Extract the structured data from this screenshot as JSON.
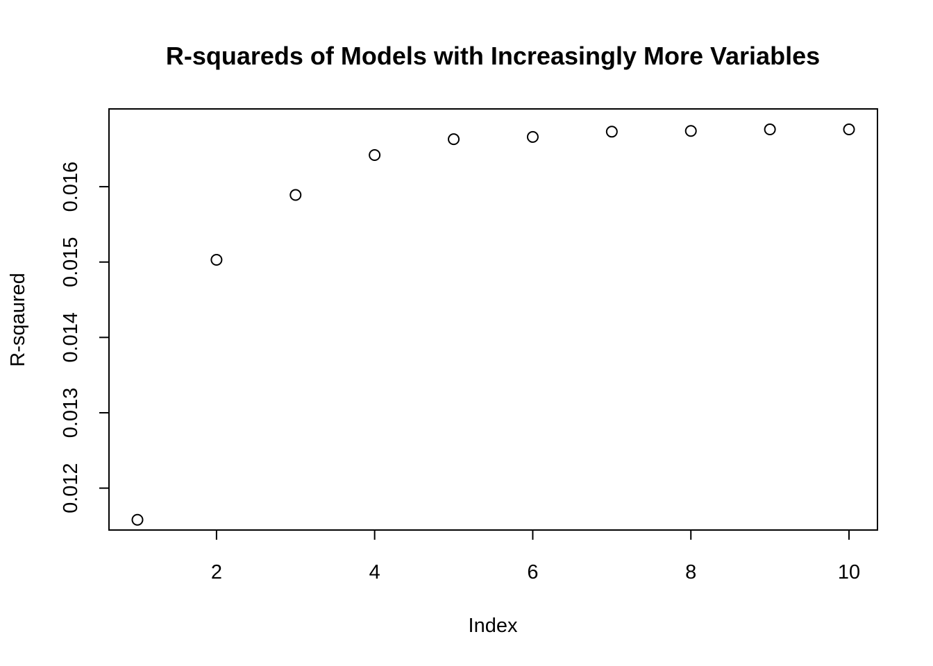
{
  "chart_data": {
    "type": "scatter",
    "title": "R-squareds of Models with Increasingly More Variables",
    "xlabel": "Index",
    "ylabel": "R-sqaured",
    "x": [
      1,
      2,
      3,
      4,
      5,
      6,
      7,
      8,
      9,
      10
    ],
    "y": [
      0.01158,
      0.01503,
      0.01589,
      0.01642,
      0.01663,
      0.01666,
      0.01673,
      0.01674,
      0.01676,
      0.01676
    ],
    "xlim": [
      0.64,
      10.36
    ],
    "ylim": [
      0.011444,
      0.017032
    ],
    "xticks": [
      2,
      4,
      6,
      8,
      10
    ],
    "xtick_labels": [
      "2",
      "4",
      "6",
      "8",
      "10"
    ],
    "yticks": [
      0.012,
      0.013,
      0.014,
      0.015,
      0.016
    ],
    "ytick_labels": [
      "0.012",
      "0.013",
      "0.014",
      "0.015",
      "0.016"
    ],
    "grid": false,
    "marker": "open-circle",
    "colors": {
      "marker": "#000000",
      "background": "#ffffff"
    }
  }
}
